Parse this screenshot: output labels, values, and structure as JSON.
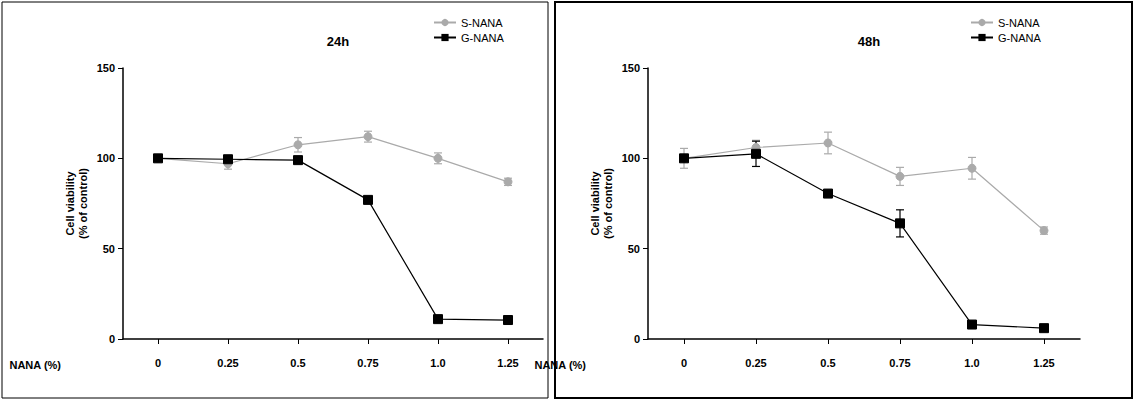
{
  "chart_data": [
    {
      "type": "line",
      "title": "24h",
      "xlabel": "NANA (%)",
      "ylabel": "Cell viability\n(% of control)",
      "categories": [
        "0",
        "0.25",
        "0.5",
        "0.75",
        "1.0",
        "1.25"
      ],
      "series": [
        {
          "name": "S-NANA",
          "color": "#aaaaaa",
          "marker": "circle",
          "values": [
            100,
            97,
            107.5,
            112,
            100,
            87
          ],
          "errors": [
            0,
            3,
            4,
            3,
            3,
            2
          ]
        },
        {
          "name": "G-NANA",
          "color": "#000000",
          "marker": "square",
          "values": [
            100,
            99.5,
            99,
            77,
            11,
            10.5
          ],
          "errors": [
            0,
            1,
            1,
            1,
            1,
            1
          ]
        }
      ],
      "ylim": [
        0,
        150
      ],
      "yticks": [
        0,
        50,
        100,
        150
      ],
      "grid": false,
      "legend": "upper right"
    },
    {
      "type": "line",
      "title": "48h",
      "xlabel": "NANA (%)",
      "ylabel": "Cell viability\n(% of control)",
      "categories": [
        "0",
        "0.25",
        "0.5",
        "0.75",
        "1.0",
        "1.25"
      ],
      "series": [
        {
          "name": "S-NANA",
          "color": "#aaaaaa",
          "marker": "circle",
          "values": [
            100,
            106,
            108.5,
            90,
            94.5,
            60
          ],
          "errors": [
            5.5,
            4,
            6,
            5,
            6,
            2
          ]
        },
        {
          "name": "G-NANA",
          "color": "#000000",
          "marker": "square",
          "values": [
            100,
            102.5,
            80.5,
            64,
            8,
            6
          ],
          "errors": [
            0,
            7,
            1,
            7.5,
            1,
            1
          ]
        }
      ],
      "ylim": [
        0,
        150
      ],
      "yticks": [
        0,
        50,
        100,
        150
      ],
      "grid": false,
      "legend": "upper right"
    }
  ]
}
